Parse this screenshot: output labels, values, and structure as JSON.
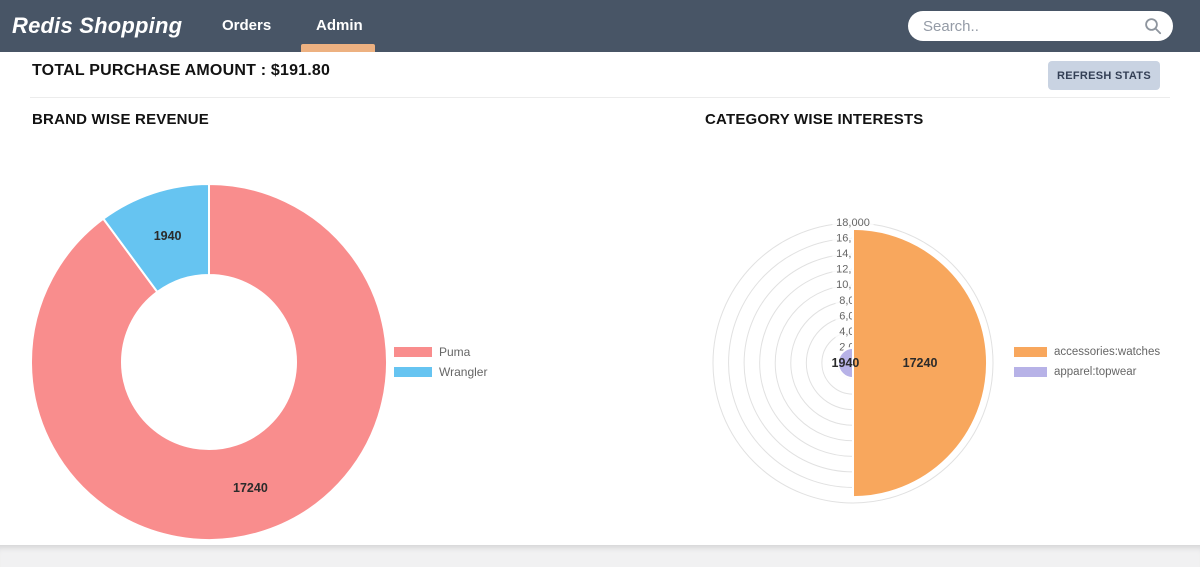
{
  "nav": {
    "brand": "Redis Shopping",
    "tabs": [
      {
        "label": "Orders",
        "active": false
      },
      {
        "label": "Admin",
        "active": true
      }
    ],
    "search": {
      "placeholder": "Search.."
    }
  },
  "header": {
    "total_purchase": "TOTAL PURCHASE AMOUNT : $191.80",
    "refresh_button": "REFRESH STATS"
  },
  "colors": {
    "navbar": "#485566",
    "active_tab_underline": "#EDB181",
    "refresh_button_bg": "#C9D3E2",
    "refresh_button_text": "#333F55",
    "grid_ring": "#E1E1E1",
    "data_label_text": "#2B2B2B",
    "tick_text": "#666666",
    "legend_text": "#666666"
  },
  "chart_data": [
    {
      "type": "pie",
      "style": "doughnut",
      "title": "BRAND WISE REVENUE",
      "categories": [
        "Puma",
        "Wrangler"
      ],
      "values": [
        17240,
        1940
      ],
      "data_labels": [
        "17240",
        "1940"
      ],
      "colors": [
        "#F98D8D",
        "#66C4F1"
      ],
      "legend_position": "right",
      "border_color": "#FFFFFF"
    },
    {
      "type": "pie",
      "style": "polarArea",
      "title": "CATEGORY WISE INTERESTS",
      "categories": [
        "accessories:watches",
        "apparel:topwear"
      ],
      "values": [
        17240,
        1940
      ],
      "data_labels": [
        "17240",
        "1940"
      ],
      "colors": [
        "#F8A75D",
        "#B7B2E7"
      ],
      "legend_position": "right",
      "grid": true,
      "rmax": 18000,
      "rstep": 2000,
      "ticks": [
        "2,000",
        "4,000",
        "6,000",
        "8,000",
        "10,000",
        "12,000",
        "14,000",
        "16,000",
        "18,000"
      ],
      "border_color": "#FFFFFF"
    }
  ]
}
